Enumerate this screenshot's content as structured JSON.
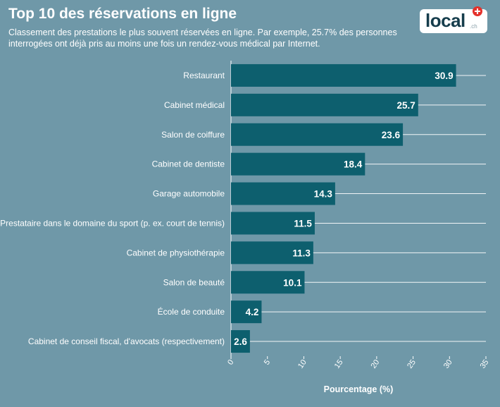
{
  "header": {
    "title": "Top 10 des réservations en ligne",
    "subtitle": "Classement des prestations le plus souvent réservées en ligne. Par exemple, 25.7% des personnes interrogées ont déjà pris au moins une fois un rendez-vous médical par Internet."
  },
  "logo": {
    "text": "local",
    "suffix": ".ch",
    "icon": "swiss-cross-icon",
    "cross_color": "#e4312b"
  },
  "colors": {
    "background": "#6f98a8",
    "bar": "#0d5f6e",
    "grid": "#ffffff",
    "text": "#ffffff"
  },
  "chart_data": {
    "type": "bar",
    "orientation": "horizontal",
    "title": "Top 10 des réservations en ligne",
    "xlabel": "Pourcentage (%)",
    "ylabel": "",
    "xlim": [
      0,
      35
    ],
    "xticks": [
      0,
      5,
      10,
      15,
      20,
      25,
      30,
      35
    ],
    "grid": true,
    "categories": [
      "Restaurant",
      "Cabinet médical",
      "Salon de coiffure",
      "Cabinet de dentiste",
      "Garage automobile",
      "Prestataire dans le domaine du sport (p. ex. court de tennis)",
      "Cabinet de physiothérapie",
      "Salon de beauté",
      "École de conduite",
      "Cabinet de conseil fiscal, d'avocats (respectivement)"
    ],
    "values": [
      30.9,
      25.7,
      23.6,
      18.4,
      14.3,
      11.5,
      11.3,
      10.1,
      4.2,
      2.6
    ]
  }
}
